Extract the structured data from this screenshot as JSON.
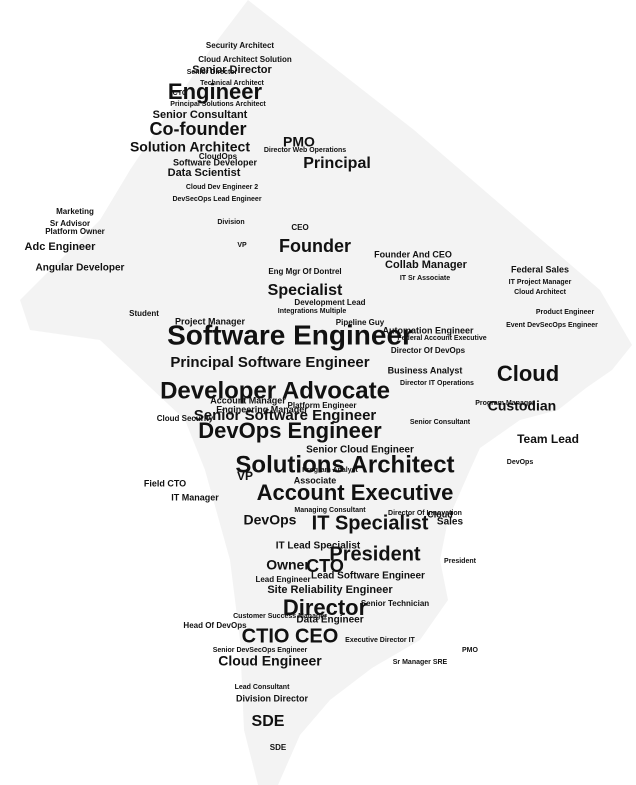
{
  "colors": {
    "background": "#ffffff",
    "ink": "#111111",
    "shape_fill": "#ececec"
  },
  "words": [
    {
      "text": "Software Engineer",
      "weight": 10
    },
    {
      "text": "Solutions Architect",
      "weight": 10
    },
    {
      "text": "Developer Advocate",
      "weight": 9
    },
    {
      "text": "Account Executive",
      "weight": 9
    },
    {
      "text": "DevOps Engineer",
      "weight": 8
    },
    {
      "text": "IT Specialist",
      "weight": 8
    },
    {
      "text": "President",
      "weight": 7
    },
    {
      "text": "Director",
      "weight": 7
    },
    {
      "text": "CTIO CEO",
      "weight": 7
    },
    {
      "text": "Engineer",
      "weight": 6
    },
    {
      "text": "Co-founder",
      "weight": 6
    },
    {
      "text": "Founder",
      "weight": 6
    },
    {
      "text": "Cloud",
      "weight": 6
    },
    {
      "text": "Specialist",
      "weight": 5
    },
    {
      "text": "Solution Architect",
      "weight": 5
    },
    {
      "text": "Principal Software Engineer",
      "weight": 5
    },
    {
      "text": "Senior Software Engineer",
      "weight": 5
    },
    {
      "text": "Cloud Engineer",
      "weight": 5
    },
    {
      "text": "CTO",
      "weight": 5
    },
    {
      "text": "DevOps",
      "weight": 5
    },
    {
      "text": "Owner",
      "weight": 4
    },
    {
      "text": "SDE",
      "weight": 4
    },
    {
      "text": "Principal",
      "weight": 4
    },
    {
      "text": "PMO",
      "weight": 4
    },
    {
      "text": "Custodian",
      "weight": 4
    },
    {
      "text": "Team Lead",
      "weight": 4
    },
    {
      "text": "Site Reliability Engineer",
      "weight": 3
    },
    {
      "text": "Lead Software Engineer",
      "weight": 3
    },
    {
      "text": "IT Lead Specialist",
      "weight": 3
    },
    {
      "text": "Senior Consultant",
      "weight": 3
    },
    {
      "text": "Senior Director",
      "weight": 3
    },
    {
      "text": "Data Scientist",
      "weight": 3
    },
    {
      "text": "Adc Engineer",
      "weight": 3
    },
    {
      "text": "Angular Developer",
      "weight": 3
    },
    {
      "text": "Project Manager",
      "weight": 3
    },
    {
      "text": "Senior Cloud Engineer",
      "weight": 3
    },
    {
      "text": "Engineering Manager",
      "weight": 3
    },
    {
      "text": "Account Manager",
      "weight": 3
    },
    {
      "text": "Data Engineer",
      "weight": 3
    },
    {
      "text": "Sales",
      "weight": 3
    },
    {
      "text": "Collab Manager",
      "weight": 3
    },
    {
      "text": "Automation Engineer",
      "weight": 2
    },
    {
      "text": "Business Analyst",
      "weight": 2
    },
    {
      "text": "Division Director",
      "weight": 2
    },
    {
      "text": "Head Of DevOps",
      "weight": 2
    },
    {
      "text": "Field CTO",
      "weight": 2
    },
    {
      "text": "IT Manager",
      "weight": 2
    },
    {
      "text": "VP",
      "weight": 2
    },
    {
      "text": "Student",
      "weight": 2
    },
    {
      "text": "Marketing",
      "weight": 2
    },
    {
      "text": "Sr Advisor",
      "weight": 2
    },
    {
      "text": "Platform Owner",
      "weight": 2
    },
    {
      "text": "Cloud Security",
      "weight": 2
    },
    {
      "text": "Associate",
      "weight": 2
    },
    {
      "text": "Pipeline Guy",
      "weight": 2
    },
    {
      "text": "Development Lead",
      "weight": 2
    },
    {
      "text": "Security Architect",
      "weight": 2
    },
    {
      "text": "Cloud Architect Solution",
      "weight": 2
    },
    {
      "text": "Technical Architect",
      "weight": 1
    },
    {
      "text": "Principal Solutions Architect",
      "weight": 1
    },
    {
      "text": "Software Developer",
      "weight": 2
    },
    {
      "text": "Cloud Dev Engineer 2",
      "weight": 1
    },
    {
      "text": "DevSecOps Lead Engineer",
      "weight": 1
    },
    {
      "text": "Eng Mgr Of Dontrel",
      "weight": 2
    },
    {
      "text": "Director Of Innovation",
      "weight": 1
    },
    {
      "text": "Founder And CEO",
      "weight": 2
    },
    {
      "text": "Federal Sales",
      "weight": 2
    },
    {
      "text": "IT Project Manager",
      "weight": 1
    },
    {
      "text": "Director Of DevOps",
      "weight": 2
    },
    {
      "text": "Senior Technician",
      "weight": 2
    },
    {
      "text": "Executive Director IT",
      "weight": 1
    },
    {
      "text": "Lead Consultant",
      "weight": 1
    },
    {
      "text": "Senior DevSecOps Engineer",
      "weight": 1
    },
    {
      "text": "Director Web Operations",
      "weight": 1
    },
    {
      "text": "Integrations Multiple",
      "weight": 1
    },
    {
      "text": "Program Analyst",
      "weight": 1
    },
    {
      "text": "Platform Engineer",
      "weight": 1
    },
    {
      "text": "Managing Consultant",
      "weight": 1
    },
    {
      "text": "Lead Engineer",
      "weight": 1
    },
    {
      "text": "Customer Success Manager",
      "weight": 1
    },
    {
      "text": "CloudOps",
      "weight": 1
    },
    {
      "text": "Division",
      "weight": 1
    },
    {
      "text": "Cloud",
      "weight": 1
    },
    {
      "text": "CEO",
      "weight": 2
    },
    {
      "text": "CTO",
      "weight": 1
    },
    {
      "text": "SDE",
      "weight": 1
    },
    {
      "text": "PMO",
      "weight": 1
    },
    {
      "text": "VP",
      "weight": 1
    },
    {
      "text": "IT Sr Associate",
      "weight": 1
    },
    {
      "text": "Event DevSecOps Engineer",
      "weight": 1
    },
    {
      "text": "Program Manager",
      "weight": 1
    },
    {
      "text": "Senior Consultant",
      "weight": 1
    },
    {
      "text": "DevOps",
      "weight": 1
    },
    {
      "text": "Product Engineer",
      "weight": 1
    },
    {
      "text": "Director IT Operations",
      "weight": 1
    },
    {
      "text": "Federal Account Executive",
      "weight": 1
    },
    {
      "text": "Cloud Architect",
      "weight": 1
    },
    {
      "text": "Senior Director",
      "weight": 1
    },
    {
      "text": "President",
      "weight": 1
    },
    {
      "text": "Sr Manager SRE",
      "weight": 1
    }
  ]
}
